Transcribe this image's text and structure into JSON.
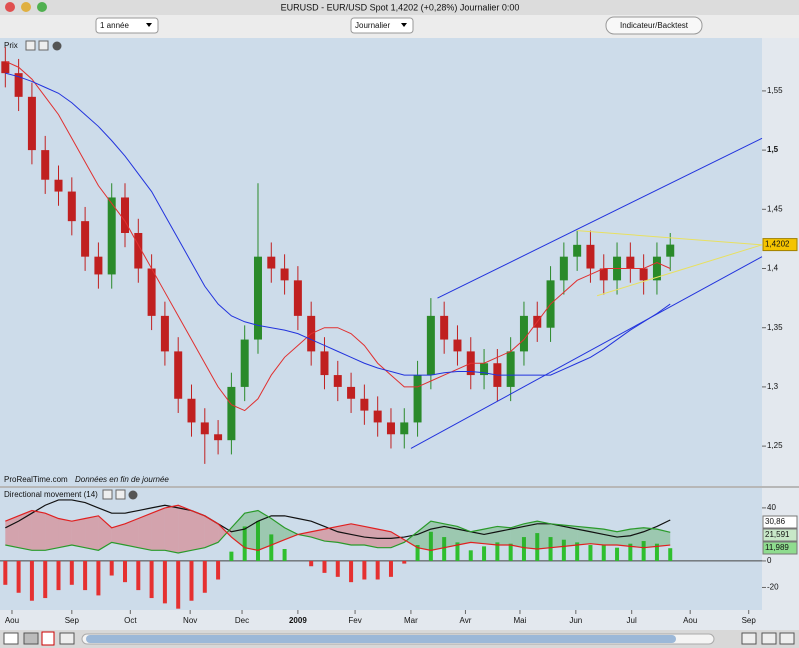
{
  "window": {
    "title": "EURUSD - EUR/USD Spot    1,4202 (+0,28%)    Journalier  0:00"
  },
  "toolbar": {
    "period": "1 année",
    "interval": "Journalier",
    "button": "Indicateur/Backtest"
  },
  "footer": {
    "site": "ProRealTime.com",
    "note": "Données en fin de journée"
  },
  "chart_data": [
    {
      "type": "candlestick",
      "title": "Prix",
      "up_color": "#2a8a2a",
      "down_color": "#c02020",
      "xlim": [
        -0.4,
        56.9
      ],
      "ylim": [
        1.218,
        1.593
      ],
      "yticks": [
        {
          "value": 1.25,
          "label": "1,25"
        },
        {
          "value": 1.3,
          "label": "1,3"
        },
        {
          "value": 1.35,
          "label": "1,35"
        },
        {
          "value": 1.4,
          "label": "1,4"
        },
        {
          "value": 1.45,
          "label": "1,45"
        },
        {
          "value": 1.5,
          "label": "1,5",
          "bold": true
        },
        {
          "value": 1.55,
          "label": "1,55"
        }
      ],
      "open": [
        1.575,
        1.565,
        1.545,
        1.5,
        1.475,
        1.465,
        1.44,
        1.41,
        1.395,
        1.46,
        1.43,
        1.4,
        1.36,
        1.33,
        1.29,
        1.27,
        1.26,
        1.255,
        1.3,
        1.34,
        1.41,
        1.4,
        1.39,
        1.36,
        1.33,
        1.31,
        1.3,
        1.29,
        1.28,
        1.27,
        1.26,
        1.27,
        1.31,
        1.36,
        1.34,
        1.33,
        1.31,
        1.32,
        1.3,
        1.33,
        1.36,
        1.35,
        1.39,
        1.41,
        1.42,
        1.4,
        1.39,
        1.41,
        1.4,
        1.39,
        1.41
      ],
      "high": [
        1.587,
        1.577,
        1.557,
        1.512,
        1.487,
        1.477,
        1.452,
        1.422,
        1.472,
        1.472,
        1.442,
        1.412,
        1.372,
        1.342,
        1.302,
        1.282,
        1.272,
        1.312,
        1.352,
        1.472,
        1.422,
        1.412,
        1.402,
        1.372,
        1.342,
        1.322,
        1.312,
        1.302,
        1.292,
        1.282,
        1.282,
        1.322,
        1.375,
        1.372,
        1.352,
        1.342,
        1.332,
        1.332,
        1.342,
        1.372,
        1.372,
        1.402,
        1.422,
        1.432,
        1.432,
        1.412,
        1.422,
        1.422,
        1.412,
        1.422,
        1.43
      ],
      "low": [
        1.553,
        1.533,
        1.488,
        1.463,
        1.453,
        1.428,
        1.398,
        1.383,
        1.383,
        1.418,
        1.388,
        1.348,
        1.318,
        1.278,
        1.258,
        1.235,
        1.243,
        1.243,
        1.288,
        1.328,
        1.388,
        1.378,
        1.348,
        1.318,
        1.298,
        1.288,
        1.278,
        1.268,
        1.258,
        1.248,
        1.248,
        1.258,
        1.298,
        1.328,
        1.318,
        1.298,
        1.298,
        1.288,
        1.288,
        1.318,
        1.338,
        1.338,
        1.378,
        1.398,
        1.388,
        1.378,
        1.378,
        1.388,
        1.378,
        1.378,
        1.398
      ],
      "close": [
        1.565,
        1.545,
        1.5,
        1.475,
        1.465,
        1.44,
        1.41,
        1.395,
        1.46,
        1.43,
        1.4,
        1.36,
        1.33,
        1.29,
        1.27,
        1.26,
        1.255,
        1.3,
        1.34,
        1.41,
        1.4,
        1.39,
        1.36,
        1.33,
        1.31,
        1.3,
        1.29,
        1.28,
        1.27,
        1.26,
        1.27,
        1.31,
        1.36,
        1.34,
        1.33,
        1.31,
        1.32,
        1.3,
        1.33,
        1.36,
        1.35,
        1.39,
        1.41,
        1.42,
        1.4,
        1.39,
        1.41,
        1.4,
        1.39,
        1.41,
        1.4202
      ],
      "last_value_label": "1,4202",
      "series": [
        {
          "color": "#e03030",
          "values": [
            1.575,
            1.57,
            1.56,
            1.545,
            1.53,
            1.51,
            1.49,
            1.47,
            1.455,
            1.44,
            1.42,
            1.4,
            1.38,
            1.36,
            1.34,
            1.32,
            1.3,
            1.285,
            1.28,
            1.29,
            1.31,
            1.325,
            1.335,
            1.345,
            1.35,
            1.35,
            1.345,
            1.335,
            1.32,
            1.31,
            1.3,
            1.3,
            1.305,
            1.31,
            1.315,
            1.32,
            1.32,
            1.325,
            1.33,
            1.34,
            1.355,
            1.37,
            1.38,
            1.39,
            1.395,
            1.4,
            1.4,
            1.4,
            1.4,
            1.405,
            1.4
          ]
        },
        {
          "color": "#2233dd",
          "values": [
            1.565,
            1.562,
            1.558,
            1.553,
            1.548,
            1.54,
            1.53,
            1.52,
            1.508,
            1.495,
            1.48,
            1.465,
            1.445,
            1.425,
            1.405,
            1.385,
            1.37,
            1.36,
            1.355,
            1.352,
            1.35,
            1.348,
            1.345,
            1.34,
            1.335,
            1.33,
            1.325,
            1.32,
            1.316,
            1.313,
            1.31,
            1.31,
            1.31,
            1.312,
            1.313,
            1.313,
            1.312,
            1.31,
            1.31,
            1.31,
            1.31,
            1.31,
            1.315,
            1.32,
            1.325,
            1.332,
            1.34,
            1.348,
            1.355,
            1.362,
            1.37
          ]
        }
      ],
      "lines": [
        {
          "color": "#2233dd",
          "x": [
            32.5,
            56.9
          ],
          "values": [
            1.375,
            1.51
          ]
        },
        {
          "color": "#2233dd",
          "x": [
            30.5,
            56.9
          ],
          "values": [
            1.248,
            1.41
          ]
        },
        {
          "color": "#e8e060",
          "x": [
            43,
            56.9
          ],
          "values": [
            1.432,
            1.42
          ]
        },
        {
          "color": "#e8e060",
          "x": [
            44.5,
            56.9
          ],
          "values": [
            1.377,
            1.42
          ]
        }
      ]
    },
    {
      "type": "directional-movement",
      "title": "Directional movement (14)",
      "xlim": [
        -0.4,
        56.9
      ],
      "ylim": [
        -37,
        55
      ],
      "yticks": [
        40,
        0,
        -20
      ],
      "xticks": [
        {
          "value": 0.5,
          "label": "Aou"
        },
        {
          "value": 5,
          "label": "Sep"
        },
        {
          "value": 9.4,
          "label": "Oct"
        },
        {
          "value": 13.9,
          "label": "Nov"
        },
        {
          "value": 17.8,
          "label": "Dec"
        },
        {
          "value": 22,
          "label": "2009",
          "bold": true
        },
        {
          "value": 26.3,
          "label": "Fev"
        },
        {
          "value": 30.5,
          "label": "Mar"
        },
        {
          "value": 34.6,
          "label": "Avr"
        },
        {
          "value": 38.7,
          "label": "Mai"
        },
        {
          "value": 42.9,
          "label": "Jun"
        },
        {
          "value": 47.1,
          "label": "Jul"
        },
        {
          "value": 51.5,
          "label": "Aou"
        },
        {
          "value": 55.9,
          "label": "Sep"
        }
      ],
      "series": [
        {
          "color": "#111111",
          "label_bg": "#ffffff",
          "last_label": "30,86",
          "values": [
            25,
            30,
            36,
            42,
            46,
            46,
            44,
            40,
            36,
            36,
            38,
            40,
            42,
            40,
            38,
            34,
            28,
            22,
            24,
            30,
            34,
            34,
            32,
            30,
            26,
            22,
            20,
            18,
            17,
            17,
            18,
            20,
            24,
            26,
            24,
            22,
            20,
            22,
            24,
            26,
            28,
            28,
            26,
            24,
            22,
            20,
            18,
            19,
            22,
            26,
            30.86
          ]
        },
        {
          "color": "#2a9a2a",
          "label_bg": "#c8e8c8",
          "last_label": "21,591",
          "values": [
            12,
            10,
            8,
            8,
            10,
            12,
            10,
            8,
            14,
            12,
            10,
            8,
            8,
            6,
            8,
            10,
            14,
            25,
            36,
            38,
            32,
            25,
            20,
            18,
            15,
            14,
            12,
            12,
            10,
            10,
            14,
            22,
            30,
            28,
            26,
            22,
            24,
            26,
            25,
            28,
            30,
            28,
            27,
            26,
            25,
            24,
            22,
            24,
            25,
            24,
            21.591
          ]
        },
        {
          "color": "#e02020",
          "label_bg": "#8fdc8f",
          "last_label": "11,989",
          "values": [
            30,
            34,
            38,
            36,
            32,
            30,
            32,
            34,
            25,
            28,
            32,
            36,
            40,
            42,
            38,
            34,
            28,
            18,
            10,
            8,
            12,
            16,
            20,
            22,
            24,
            26,
            28,
            26,
            24,
            22,
            16,
            10,
            8,
            10,
            12,
            14,
            13,
            12,
            12,
            10,
            9,
            10,
            11,
            12,
            13,
            12,
            12,
            11,
            10,
            11,
            11.989
          ]
        }
      ],
      "histogram": {
        "pos_color": "#2fbf2f",
        "neg_color": "#e53030",
        "values": [
          -18,
          -24,
          -30,
          -28,
          -22,
          -18,
          -22,
          -26,
          -11,
          -16,
          -22,
          -28,
          -32,
          -36,
          -30,
          -24,
          -14,
          7,
          26,
          30,
          20,
          9,
          0,
          -4,
          -9,
          -12,
          -16,
          -14,
          -14,
          -12,
          -2,
          12,
          22,
          18,
          14,
          8,
          11,
          14,
          13,
          18,
          21,
          18,
          16,
          14,
          12,
          12,
          10,
          13,
          15,
          13,
          9.6
        ]
      }
    }
  ]
}
